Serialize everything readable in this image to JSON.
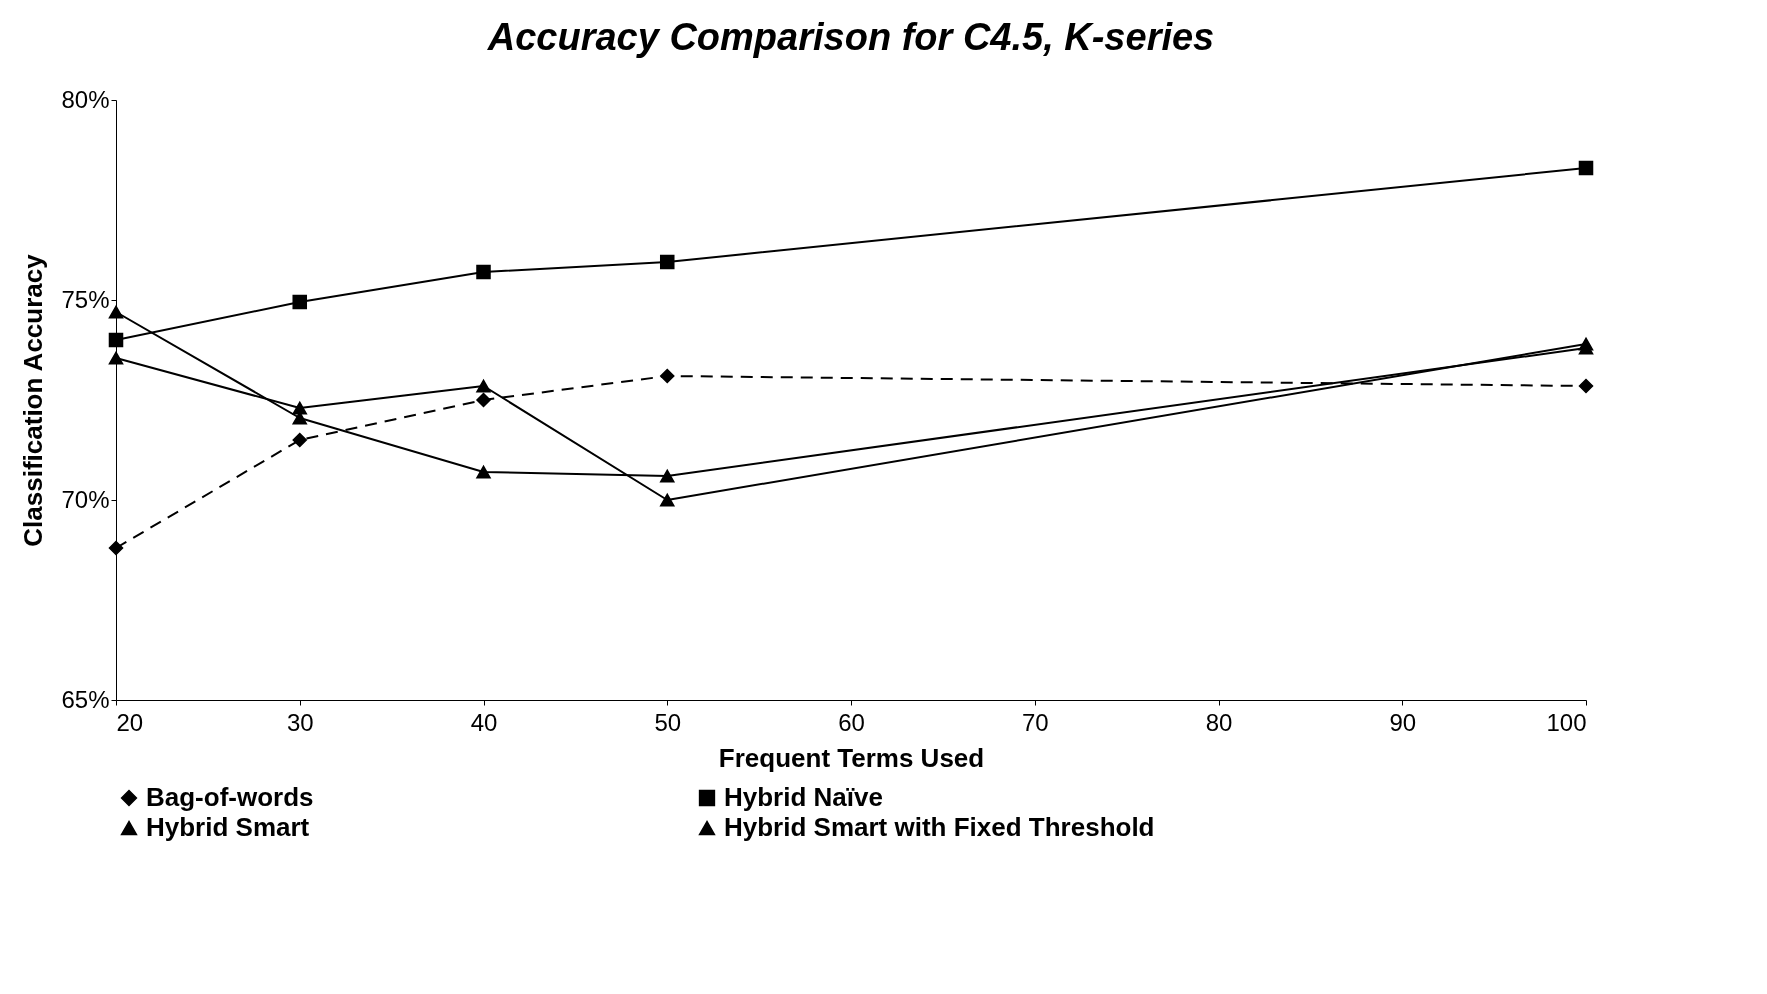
{
  "chart_data": {
    "type": "line",
    "title": "Accuracy Comparison for C4.5, K-series",
    "xlabel": "Frequent Terms Used",
    "ylabel": "Classification Accuracy",
    "x": [
      20,
      30,
      40,
      50,
      100
    ],
    "xlim": [
      20,
      100
    ],
    "xticks": [
      20,
      30,
      40,
      50,
      60,
      70,
      80,
      90,
      100
    ],
    "ylim": [
      65,
      80
    ],
    "yticks": [
      {
        "value": 65,
        "label": "65%"
      },
      {
        "value": 70,
        "label": "70%"
      },
      {
        "value": 75,
        "label": "75%"
      },
      {
        "value": 80,
        "label": "80%"
      }
    ],
    "grid": false,
    "legend": "bottom",
    "series": [
      {
        "name": "Bag-of-words",
        "color": "#000000",
        "marker": "diamond",
        "line_style": "dashed",
        "values": [
          68.8,
          71.5,
          72.5,
          73.1,
          72.85
        ]
      },
      {
        "name": "Hybrid Naïve",
        "color": "#000000",
        "marker": "square",
        "line_style": "solid",
        "values": [
          74.0,
          74.95,
          75.7,
          75.95,
          78.3
        ]
      },
      {
        "name": "Hybrid Smart",
        "color": "#000000",
        "marker": "triangle",
        "line_style": "solid",
        "values": [
          74.7,
          72.05,
          70.7,
          70.6,
          73.8
        ]
      },
      {
        "name": "Hybrid Smart with Fixed Threshold",
        "color": "#000000",
        "marker": "triangle",
        "line_style": "solid",
        "values": [
          73.55,
          72.3,
          72.85,
          70.0,
          73.9
        ]
      }
    ]
  }
}
